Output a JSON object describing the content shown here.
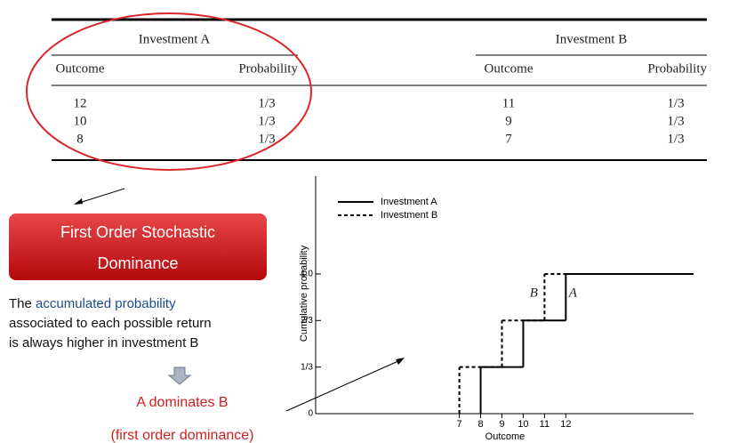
{
  "table": {
    "groups": [
      "Investment A",
      "Investment B"
    ],
    "columns": [
      "Outcome",
      "Probability",
      "Outcome",
      "Probability"
    ],
    "rows": [
      [
        "12",
        "1/3",
        "11",
        "1/3"
      ],
      [
        "10",
        "1/3",
        "9",
        "1/3"
      ],
      [
        "8",
        "1/3",
        "7",
        "1/3"
      ]
    ]
  },
  "callout": {
    "title_lines": [
      "First Order Stochastic",
      "Dominance"
    ],
    "text_lead": "The ",
    "text_highlight": "accumulated probability",
    "text_lines": [
      "associated to each possible return",
      "is always higher in investment B"
    ],
    "conclusion": "A dominates B",
    "conclusion_note": "(first order dominance)"
  },
  "chart_data": {
    "type": "step",
    "xlabel": "Outcome",
    "ylabel": "Cumulative probability",
    "xlim": [
      0.25,
      18
    ],
    "ylim": [
      0,
      1.7
    ],
    "xticks": [
      7,
      8,
      9,
      10,
      11,
      12
    ],
    "yticks": [
      {
        "value": 0,
        "label": "0"
      },
      {
        "value": 0.3333,
        "label": "1/3"
      },
      {
        "value": 0.6667,
        "label": "2/3"
      },
      {
        "value": 1.0,
        "label": "1.0"
      }
    ],
    "series": [
      {
        "name": "Investment A",
        "color": "#000000",
        "dash": false,
        "x": [
          8,
          10,
          12
        ],
        "values": [
          0.3333,
          0.6667,
          1.0
        ],
        "annotation": "A"
      },
      {
        "name": "Investment B",
        "color": "#000000",
        "dash": true,
        "x": [
          7,
          9,
          11
        ],
        "values": [
          0.3333,
          0.6667,
          1.0
        ],
        "annotation": "B"
      }
    ],
    "legend": "upper left"
  }
}
